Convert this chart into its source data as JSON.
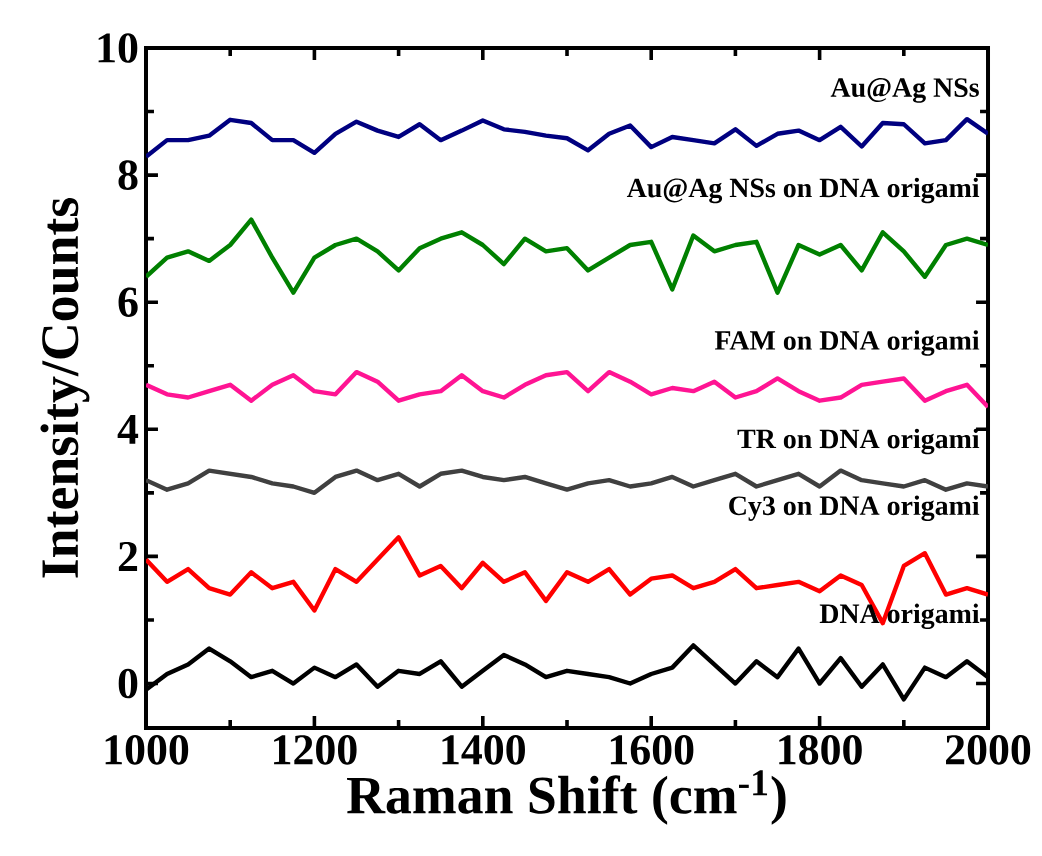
{
  "chart_data": {
    "type": "line",
    "xlabel": "Raman Shift (cm$^{-1}$)",
    "ylabel": "Intensity/Counts",
    "x": [
      1000,
      1025,
      1050,
      1075,
      1100,
      1125,
      1150,
      1175,
      1200,
      1225,
      1250,
      1275,
      1300,
      1325,
      1350,
      1375,
      1400,
      1425,
      1450,
      1475,
      1500,
      1525,
      1550,
      1575,
      1600,
      1625,
      1650,
      1675,
      1700,
      1725,
      1750,
      1775,
      1800,
      1825,
      1850,
      1875,
      1900,
      1925,
      1950,
      1975,
      2000
    ],
    "xlim": [
      1000,
      2000
    ],
    "xticks": [
      1000,
      1200,
      1400,
      1600,
      1800,
      2000
    ],
    "ylim": [
      -0.7,
      10
    ],
    "yticks": [
      0,
      2,
      4,
      6,
      8,
      10
    ],
    "annotations": [
      "Au@Ag NSs",
      "Au@Ag NSs on DNA origami",
      "FAM on DNA origami",
      "TR on DNA origami",
      "Cy3 on DNA origami",
      "DNA origami"
    ],
    "marker": "none",
    "line_style": "solid",
    "grid": false,
    "series": [
      {
        "color": "#000080",
        "values": [
          8.29,
          8.55,
          8.55,
          8.62,
          8.87,
          8.82,
          8.55,
          8.55,
          8.35,
          8.65,
          8.84,
          8.7,
          8.6,
          8.8,
          8.55,
          8.7,
          8.86,
          8.72,
          8.68,
          8.62,
          8.58,
          8.39,
          8.65,
          8.78,
          8.44,
          8.6,
          8.55,
          8.5,
          8.72,
          8.46,
          8.65,
          8.7,
          8.55,
          8.76,
          8.45,
          8.82,
          8.8,
          8.5,
          8.55,
          8.88,
          8.65
        ]
      },
      {
        "color": "#008000",
        "values": [
          6.4,
          6.7,
          6.8,
          6.65,
          6.9,
          7.3,
          6.7,
          6.15,
          6.7,
          6.9,
          7.0,
          6.8,
          6.5,
          6.85,
          7.0,
          7.1,
          6.9,
          6.6,
          7.0,
          6.8,
          6.85,
          6.5,
          6.7,
          6.9,
          6.95,
          6.2,
          7.05,
          6.8,
          6.9,
          6.95,
          6.15,
          6.9,
          6.75,
          6.9,
          6.5,
          7.1,
          6.8,
          6.4,
          6.9,
          7.0,
          6.9
        ]
      },
      {
        "color": "#ff1493",
        "values": [
          4.7,
          4.55,
          4.5,
          4.6,
          4.7,
          4.45,
          4.7,
          4.85,
          4.6,
          4.55,
          4.9,
          4.75,
          4.45,
          4.55,
          4.6,
          4.85,
          4.6,
          4.5,
          4.7,
          4.85,
          4.9,
          4.6,
          4.9,
          4.75,
          4.55,
          4.65,
          4.6,
          4.75,
          4.5,
          4.6,
          4.8,
          4.6,
          4.45,
          4.5,
          4.7,
          4.75,
          4.8,
          4.45,
          4.6,
          4.7,
          4.35
        ]
      },
      {
        "color": "#404040",
        "values": [
          3.2,
          3.05,
          3.15,
          3.35,
          3.3,
          3.25,
          3.15,
          3.1,
          3.0,
          3.25,
          3.35,
          3.2,
          3.3,
          3.1,
          3.3,
          3.35,
          3.25,
          3.2,
          3.25,
          3.15,
          3.05,
          3.15,
          3.2,
          3.1,
          3.15,
          3.25,
          3.1,
          3.2,
          3.3,
          3.1,
          3.2,
          3.3,
          3.1,
          3.35,
          3.2,
          3.15,
          3.1,
          3.2,
          3.05,
          3.15,
          3.1
        ]
      },
      {
        "color": "#ff0000",
        "values": [
          1.95,
          1.6,
          1.8,
          1.5,
          1.4,
          1.75,
          1.5,
          1.6,
          1.15,
          1.8,
          1.6,
          1.95,
          2.3,
          1.7,
          1.85,
          1.5,
          1.9,
          1.6,
          1.75,
          1.3,
          1.75,
          1.6,
          1.8,
          1.4,
          1.65,
          1.7,
          1.5,
          1.6,
          1.8,
          1.5,
          1.55,
          1.6,
          1.45,
          1.7,
          1.55,
          0.95,
          1.85,
          2.05,
          1.4,
          1.5,
          1.4
        ]
      },
      {
        "color": "#000000",
        "values": [
          -0.1,
          0.15,
          0.3,
          0.55,
          0.35,
          0.1,
          0.2,
          0.0,
          0.25,
          0.1,
          0.3,
          -0.05,
          0.2,
          0.15,
          0.35,
          -0.05,
          0.2,
          0.45,
          0.3,
          0.1,
          0.2,
          0.15,
          0.1,
          0.0,
          0.15,
          0.25,
          0.6,
          0.3,
          0.0,
          0.35,
          0.1,
          0.55,
          0.0,
          0.4,
          -0.05,
          0.3,
          -0.25,
          0.25,
          0.1,
          0.35,
          0.1
        ]
      }
    ]
  }
}
